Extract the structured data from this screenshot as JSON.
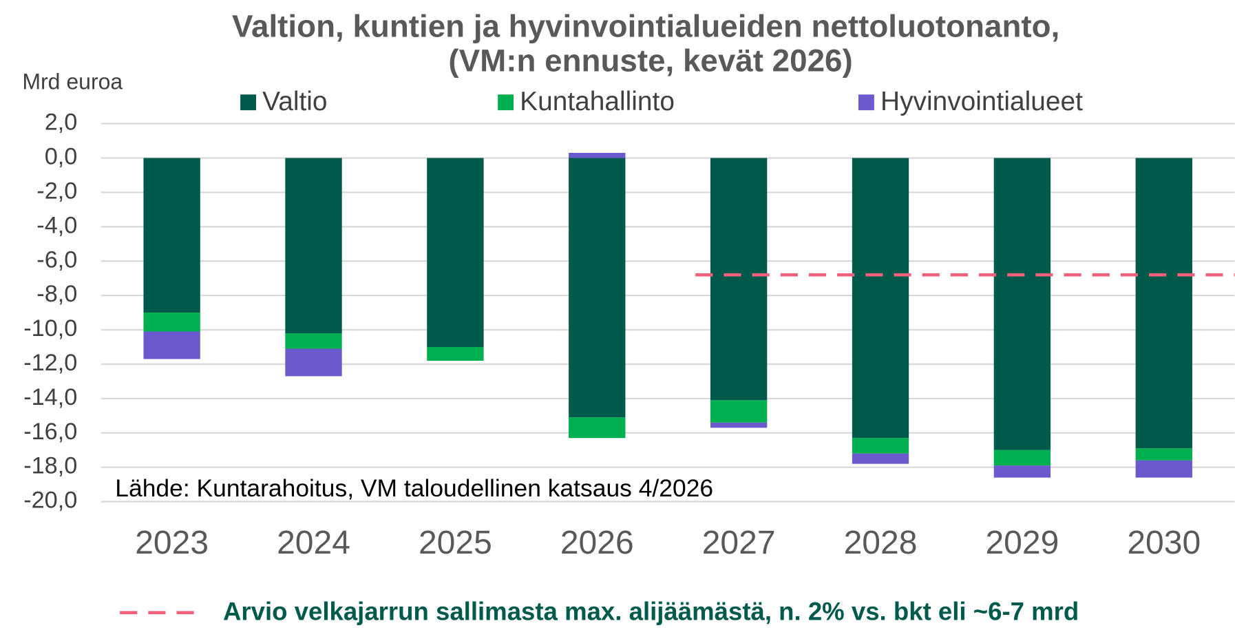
{
  "chart_data": {
    "type": "stacked_bar",
    "title": [
      "Valtion, kuntien ja hyvinvointialueiden nettoluotonanto,",
      "(VM:n ennuste, kevät 2026)"
    ],
    "y_axis_label": "Mrd euroa",
    "categories": [
      "2023",
      "2024",
      "2025",
      "2026",
      "2027",
      "2028",
      "2029",
      "2030"
    ],
    "series": [
      {
        "name": "Valtio",
        "color": "#005a4b",
        "values": [
          -9.0,
          -10.2,
          -11.0,
          -15.1,
          -14.1,
          -16.3,
          -17.0,
          -16.9
        ]
      },
      {
        "name": "Kuntahallinto",
        "color": "#00b050",
        "values": [
          -1.1,
          -0.9,
          -0.8,
          -1.2,
          -1.3,
          -0.9,
          -0.9,
          -0.7
        ]
      },
      {
        "name": "Hyvinvointialueet",
        "color": "#6a5acd",
        "values": [
          -1.6,
          -1.6,
          0.0,
          0.3,
          -0.3,
          -0.6,
          -0.7,
          -1.0
        ]
      }
    ],
    "ylim": [
      -20,
      2
    ],
    "yticks": [
      {
        "value": 2,
        "label": "2,0"
      },
      {
        "value": 0,
        "label": "0,0"
      },
      {
        "value": -2,
        "label": "-2,0"
      },
      {
        "value": -4,
        "label": "-4,0"
      },
      {
        "value": -6,
        "label": "-6,0"
      },
      {
        "value": -8,
        "label": "-8,0"
      },
      {
        "value": -10,
        "label": "-10,0"
      },
      {
        "value": -12,
        "label": "-12,0"
      },
      {
        "value": -14,
        "label": "-14,0"
      },
      {
        "value": -16,
        "label": "-16,0"
      },
      {
        "value": -18,
        "label": "-18,0"
      },
      {
        "value": -20,
        "label": "-20,0"
      }
    ],
    "grid": true,
    "legend": "top",
    "annotation": "Lähde: Kuntarahoitus,  VM taloudellinen  katsaus 4/2026",
    "reference_line": {
      "value": -6.8,
      "color": "#f0607a",
      "label": "Arvio velkajarrun sallimasta max. alijäämästä, n. 2% vs. bkt eli ~6-7 mrd"
    }
  }
}
